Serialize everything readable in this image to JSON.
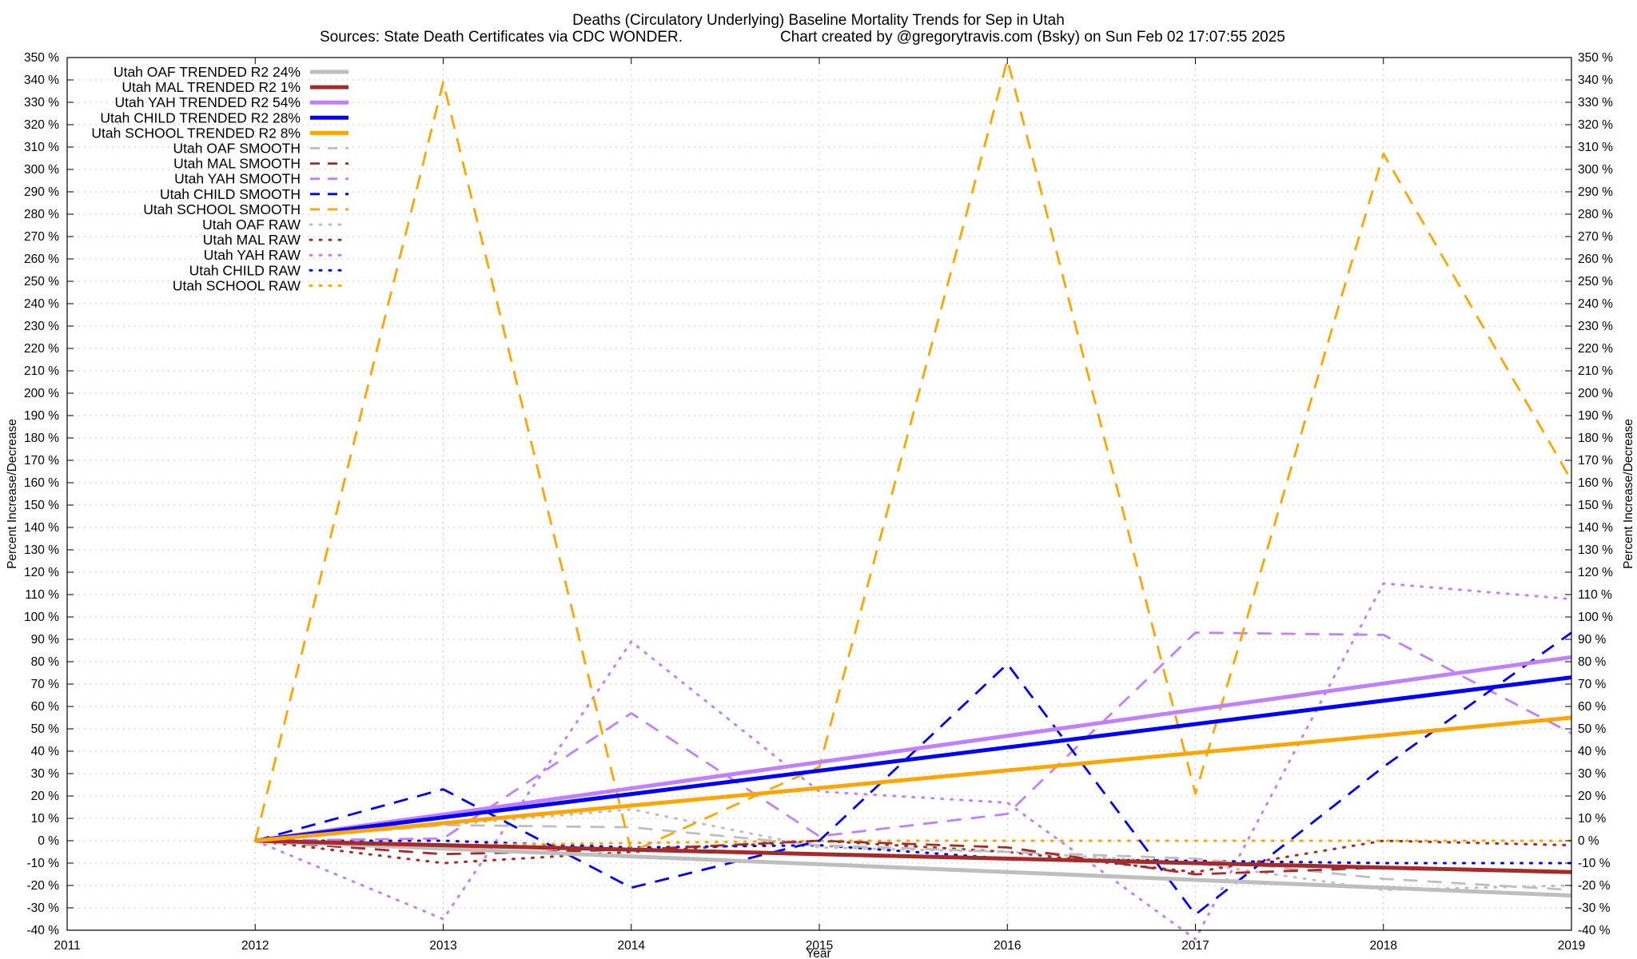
{
  "chart_data": {
    "type": "line",
    "title": "Deaths (Circulatory Underlying)  Baseline Mortality Trends for Sep in Utah",
    "subtitle_left": "Sources: State Death Certificates via CDC WONDER.",
    "subtitle_right": "Chart created by @gregorytravis.com (Bsky) on Sun Feb 02 17:07:55 2025",
    "xlabel": "Year",
    "ylabel": "Percent Increase/Decrease",
    "ylabel_right": "Percent Increase/Decrease",
    "xlim": [
      2011,
      2019
    ],
    "ylim": [
      -40,
      350
    ],
    "x_ticks": [
      "2011",
      "2012",
      "2013",
      "2014",
      "2015",
      "2016",
      "2017",
      "2018",
      "2019"
    ],
    "y_tick_step": 10,
    "y_tick_suffix": " %",
    "grid": true,
    "legend_position": "top-left",
    "colors": {
      "OAF": "#bebebe",
      "MAL": "#a52a2a",
      "YAH": "#c080ff",
      "CHILD": "#0000ff",
      "SCHOOL": "#ffa500"
    },
    "series": [
      {
        "name": "Utah OAF TRENDED R2  24%",
        "group": "OAF",
        "style": "trend",
        "x": [
          2012,
          2019
        ],
        "values": [
          0,
          -24.5
        ]
      },
      {
        "name": "Utah MAL TRENDED R2   1%",
        "group": "MAL",
        "style": "trend",
        "x": [
          2012,
          2019
        ],
        "values": [
          0,
          -14
        ]
      },
      {
        "name": "Utah YAH TRENDED R2  54%",
        "group": "YAH",
        "style": "trend",
        "x": [
          2012,
          2019
        ],
        "values": [
          0,
          82
        ]
      },
      {
        "name": "Utah CHILD TRENDED R2  28%",
        "group": "CHILD",
        "style": "trend",
        "x": [
          2012,
          2019
        ],
        "values": [
          0,
          73
        ]
      },
      {
        "name": "Utah SCHOOL TRENDED R2   8%",
        "group": "SCHOOL",
        "style": "trend",
        "x": [
          2012,
          2019
        ],
        "values": [
          0,
          55
        ]
      },
      {
        "name": "Utah OAF SMOOTH",
        "group": "OAF",
        "style": "smooth",
        "x": [
          2012,
          2013,
          2014,
          2015,
          2016,
          2017,
          2018,
          2019
        ],
        "values": [
          0,
          7,
          6,
          -2,
          -5,
          -8,
          -17,
          -22
        ]
      },
      {
        "name": "Utah MAL SMOOTH",
        "group": "MAL",
        "style": "smooth",
        "x": [
          2012,
          2013,
          2014,
          2015,
          2016,
          2017,
          2018,
          2019
        ],
        "values": [
          0,
          -6,
          -4,
          0,
          -3,
          -15,
          -12,
          -14
        ]
      },
      {
        "name": "Utah YAH SMOOTH",
        "group": "YAH",
        "style": "smooth",
        "x": [
          2012,
          2013,
          2014,
          2015,
          2016,
          2017,
          2018,
          2019
        ],
        "values": [
          0,
          1,
          57,
          2,
          12,
          93,
          92,
          48
        ]
      },
      {
        "name": "Utah CHILD SMOOTH",
        "group": "CHILD",
        "style": "smooth",
        "x": [
          2012,
          2013,
          2014,
          2015,
          2016,
          2017,
          2018,
          2019
        ],
        "values": [
          0,
          23,
          -21,
          0,
          79,
          -33,
          33,
          93
        ]
      },
      {
        "name": "Utah SCHOOL SMOOTH",
        "group": "SCHOOL",
        "style": "smooth",
        "x": [
          2012,
          2013,
          2014,
          2015,
          2016,
          2017,
          2018,
          2019
        ],
        "values": [
          0,
          339,
          -5,
          33,
          349,
          21,
          307,
          161
        ]
      },
      {
        "name": "Utah OAF RAW",
        "group": "OAF",
        "style": "raw",
        "x": [
          2012,
          2013,
          2014,
          2015,
          2016,
          2017,
          2018,
          2019
        ],
        "values": [
          0,
          7,
          14,
          -3,
          -5,
          -10,
          -22,
          -20
        ]
      },
      {
        "name": "Utah MAL RAW",
        "group": "MAL",
        "style": "raw",
        "x": [
          2012,
          2013,
          2014,
          2015,
          2016,
          2017,
          2018,
          2019
        ],
        "values": [
          0,
          -10,
          -5,
          0,
          -5,
          -14,
          0,
          -2
        ]
      },
      {
        "name": "Utah YAH RAW",
        "group": "YAH",
        "style": "raw",
        "x": [
          2012,
          2013,
          2014,
          2015,
          2016,
          2017,
          2018,
          2019
        ],
        "values": [
          0,
          -35,
          89,
          22,
          17,
          -44,
          115,
          108
        ]
      },
      {
        "name": "Utah CHILD RAW",
        "group": "CHILD",
        "style": "raw",
        "x": [
          2012,
          2013,
          2014,
          2015,
          2016,
          2017,
          2018,
          2019
        ],
        "values": [
          0,
          0,
          -3,
          -2,
          -8,
          -9,
          -10,
          -10
        ]
      },
      {
        "name": "Utah SCHOOL RAW",
        "group": "SCHOOL",
        "style": "raw",
        "x": [
          2012,
          2013,
          2014,
          2015,
          2016,
          2017,
          2018,
          2019
        ],
        "values": [
          0,
          -2,
          -1,
          0,
          0,
          0,
          0,
          0
        ]
      }
    ]
  }
}
